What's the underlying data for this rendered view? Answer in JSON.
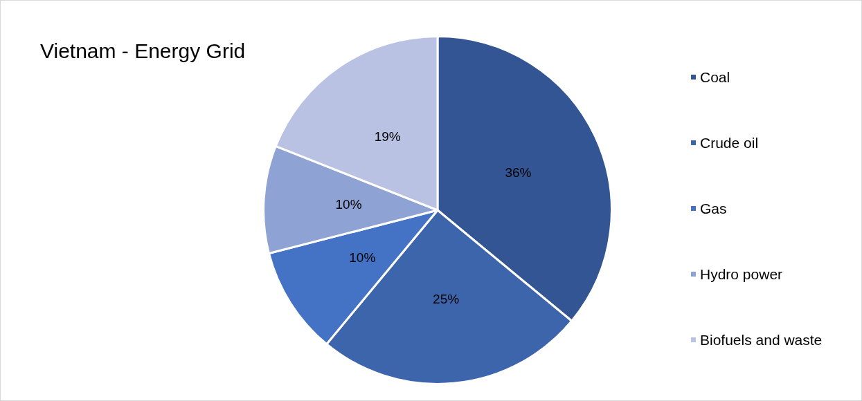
{
  "chart_data": {
    "type": "pie",
    "title": "Vietnam - Energy Grid",
    "categories": [
      "Coal",
      "Crude oil",
      "Gas",
      "Hydro power",
      "Biofuels and waste"
    ],
    "values": [
      36,
      25,
      10,
      10,
      19
    ],
    "value_labels": [
      "36%",
      "25%",
      "10%",
      "10%",
      "19%"
    ],
    "colors": [
      "#335593",
      "#3c65ac",
      "#4472c4",
      "#8fa2d4",
      "#b9c2e2"
    ],
    "legend": "right"
  }
}
